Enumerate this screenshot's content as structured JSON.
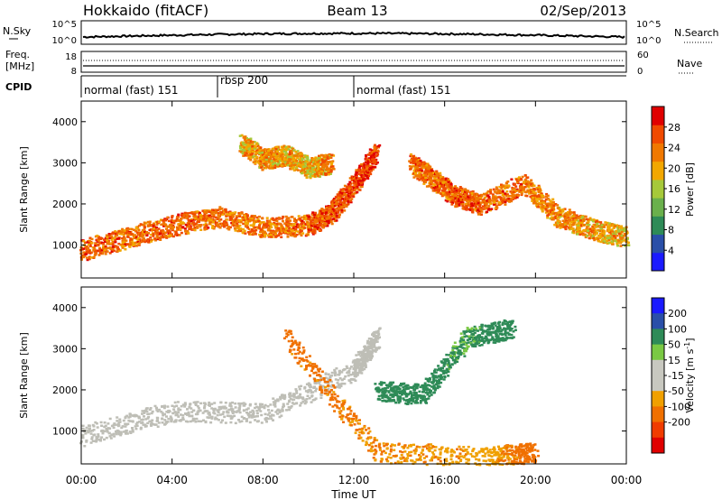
{
  "header": {
    "station": "Hokkaido (fitACF)",
    "beam": "Beam 13",
    "date": "02/Sep/2013"
  },
  "noise_panel": {
    "left_label": "N.Sky",
    "right_label": "N.Search",
    "left_ticks": [
      "10^5",
      "10^0"
    ],
    "right_ticks": [
      "10^5",
      "10^0"
    ]
  },
  "freq_panel": {
    "left_label_line1": "Freq.",
    "left_label_line2": "[MHz]",
    "right_label": "Nave",
    "left_ticks": [
      "18",
      "8"
    ],
    "right_ticks": [
      "60",
      "0"
    ]
  },
  "cpid": {
    "label": "CPID",
    "segments": [
      {
        "name": "normal (fast) 151",
        "start_hour": 0,
        "end_hour": 6
      },
      {
        "name": "rbsp 200",
        "start_hour": 6,
        "end_hour": 12
      },
      {
        "name": "normal (fast) 151",
        "start_hour": 12,
        "end_hour": 24
      }
    ]
  },
  "x_axis": {
    "label": "Time UT",
    "range_hours": [
      0,
      24
    ],
    "ticks": [
      "00:00",
      "04:00",
      "08:00",
      "12:00",
      "16:00",
      "20:00",
      "00:00"
    ],
    "tick_hours": [
      0,
      4,
      8,
      12,
      16,
      20,
      24
    ]
  },
  "colors": {
    "power_scale": [
      "#1a1aff",
      "#2a4fa8",
      "#2e8b57",
      "#6ab04c",
      "#a6c93a",
      "#f2a700",
      "#f07800",
      "#f04a00",
      "#e00000"
    ],
    "velocity_scale": [
      "#e00000",
      "#f03c00",
      "#f07000",
      "#f0a000",
      "#c8c8c0",
      "#c8c8c0",
      "#7ac943",
      "#2e8b57",
      "#2a4fa8",
      "#1a1aff"
    ],
    "ground_scatter": "#bebeb6"
  },
  "chart_data": [
    {
      "type": "heatmap",
      "title": "",
      "xlabel": "Time UT",
      "ylabel": "Slant Range [km]",
      "xlim": [
        0,
        24
      ],
      "ylim": [
        200,
        4500
      ],
      "y_ticks": [
        1000,
        2000,
        3000,
        4000
      ],
      "colorbar": {
        "label": "Power [dB]",
        "range": [
          0,
          32
        ],
        "ticks": [
          4,
          8,
          12,
          16,
          20,
          24,
          28
        ]
      },
      "features": [
        {
          "desc": "main scatter band",
          "time_hours": [
            0,
            2,
            4,
            6,
            8,
            10,
            11,
            12,
            13
          ],
          "range_km": [
            900,
            1200,
            1500,
            1700,
            1450,
            1500,
            1800,
            2500,
            3300
          ],
          "power_db": [
            26,
            24,
            25,
            24,
            23,
            25,
            26,
            27,
            28
          ]
        },
        {
          "desc": "evening band",
          "time_hours": [
            14.5,
            15.5,
            16.5,
            17.5,
            19.5,
            21,
            22.5,
            24
          ],
          "range_km": [
            3000,
            2600,
            2200,
            2000,
            2500,
            1700,
            1400,
            1200
          ],
          "power_db": [
            25,
            24,
            26,
            25,
            24,
            22,
            21,
            20
          ]
        },
        {
          "desc": "upper morning patch",
          "time_hours": [
            7,
            8,
            9,
            10,
            11
          ],
          "range_km": [
            3500,
            3100,
            3200,
            2900,
            3000
          ],
          "power_db": [
            20,
            22,
            21,
            19,
            23
          ]
        }
      ]
    },
    {
      "type": "heatmap",
      "title": "",
      "xlabel": "Time UT",
      "ylabel": "Slant Range [km]",
      "xlim": [
        0,
        24
      ],
      "ylim": [
        200,
        4500
      ],
      "y_ticks": [
        1000,
        2000,
        3000,
        4000
      ],
      "colorbar": {
        "label": "Velocity [m s^-1]",
        "range": [
          -250,
          250
        ],
        "ticks": [
          -200,
          -100,
          -50,
          -15,
          15,
          50,
          100,
          200
        ]
      },
      "features": [
        {
          "desc": "ground scatter band (grey)",
          "time_hours": [
            0,
            4,
            8,
            12,
            13
          ],
          "range_km": [
            900,
            1500,
            1450,
            2500,
            3300
          ],
          "velocity_ms": [
            0,
            0,
            0,
            0,
            0
          ]
        },
        {
          "desc": "positive velocity patches",
          "time_hours": [
            13,
            15,
            17,
            19
          ],
          "range_km": [
            2000,
            1900,
            3300,
            3500
          ],
          "velocity_ms": [
            60,
            70,
            50,
            80
          ]
        },
        {
          "desc": "negative velocity near range",
          "time_hours": [
            9,
            13,
            18,
            20
          ],
          "range_km": [
            3300,
            500,
            400,
            500
          ],
          "velocity_ms": [
            -60,
            -50,
            -40,
            -70
          ]
        }
      ]
    }
  ]
}
